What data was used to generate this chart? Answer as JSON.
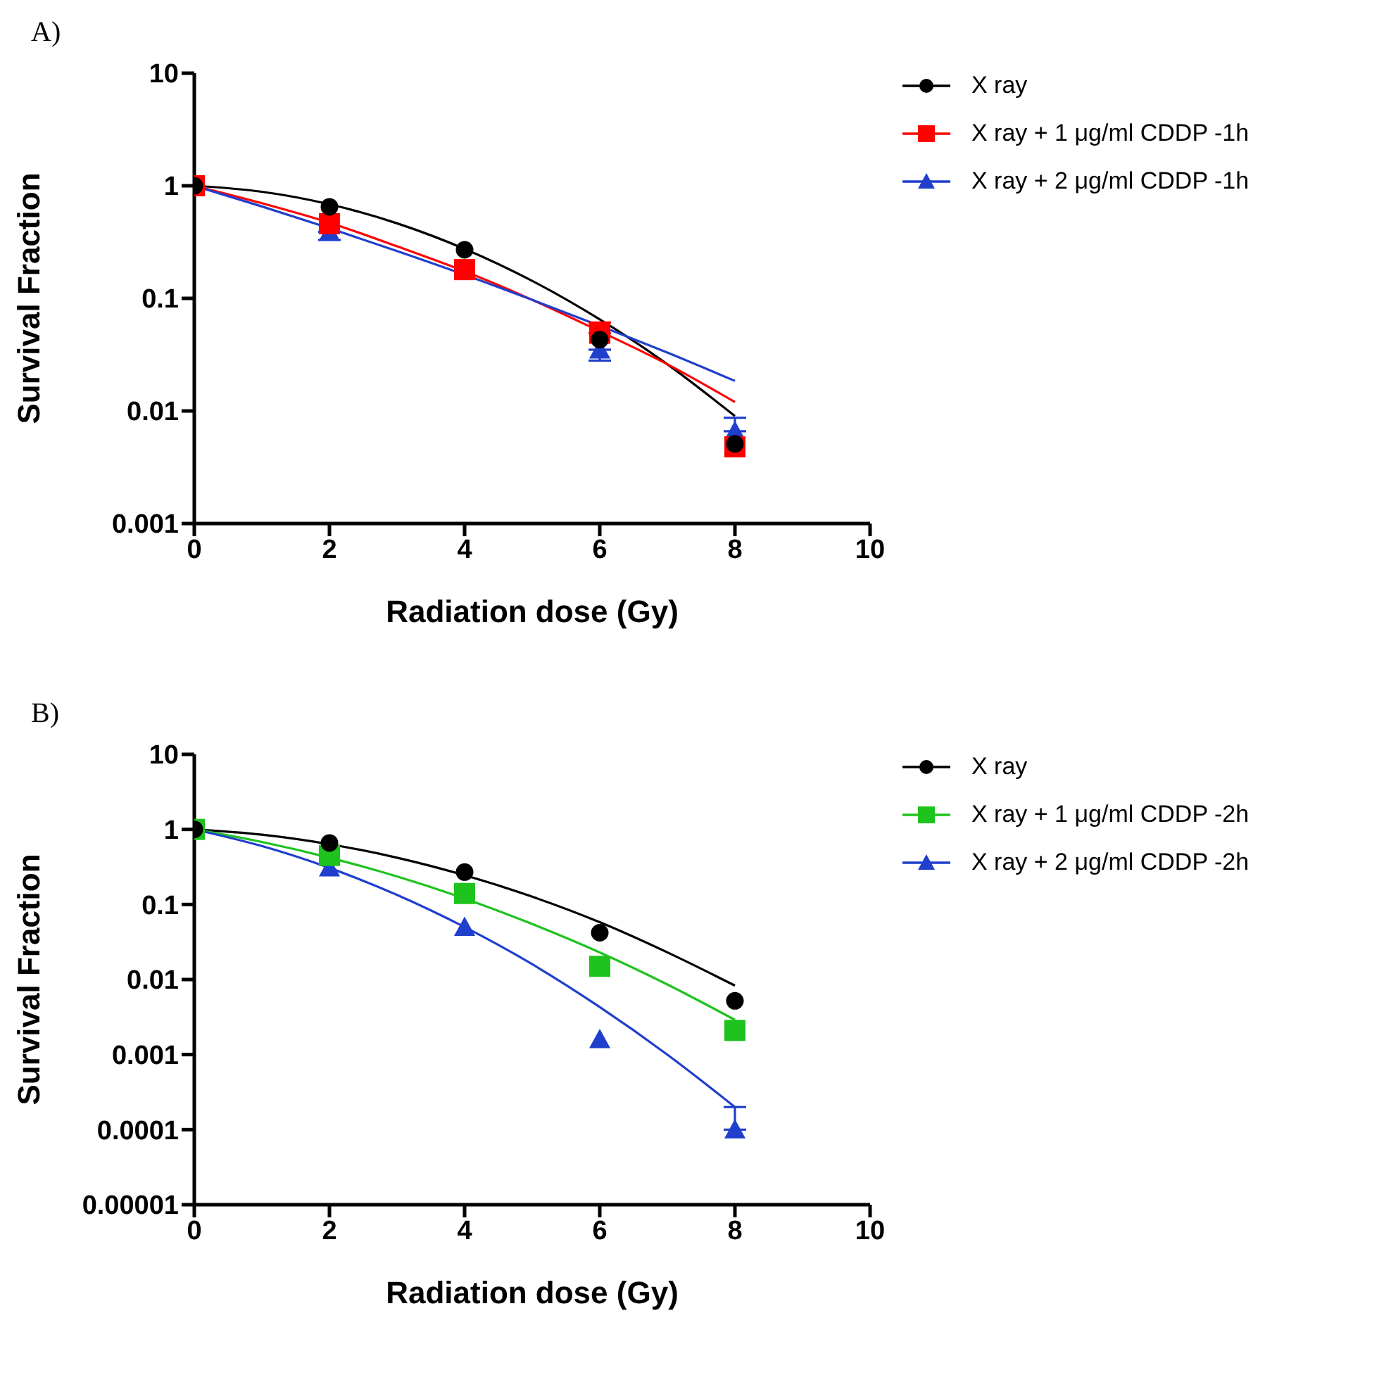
{
  "chart_data": [
    {
      "type": "scatter",
      "title": "A)",
      "xlabel": "Radiation dose (Gy)",
      "ylabel": "Survival Fraction",
      "log": "y",
      "legend": "top right",
      "xlim": [
        0,
        10
      ],
      "xticks": [
        0,
        2,
        4,
        6,
        8,
        10
      ],
      "ylim": [
        0.001,
        10
      ],
      "yticks": [
        0.001,
        0.01,
        0.1,
        1,
        10
      ],
      "series": [
        {
          "name": "X ray",
          "type": "line",
          "color": "#000000",
          "x": [
            0,
            1,
            2,
            3,
            4,
            5,
            6,
            7,
            8
          ],
          "values": [
            1,
            0.885,
            0.685,
            0.464,
            0.275,
            0.143,
            0.065,
            0.026,
            0.009
          ]
        },
        {
          "name": "X ray + 1 μg/ml CDDP -1h",
          "type": "line",
          "color": "#ff0000",
          "x": [
            0,
            1,
            2,
            3,
            4,
            5,
            6,
            7,
            8
          ],
          "values": [
            1,
            0.7,
            0.47,
            0.29,
            0.174,
            0.097,
            0.051,
            0.026,
            0.012
          ]
        },
        {
          "name": "X ray + 2 μg/ml CDDP -1h",
          "type": "line",
          "color": "#1f3fcc",
          "x": [
            0,
            1,
            2,
            3,
            4,
            5,
            6,
            7,
            8
          ],
          "values": [
            1,
            0.655,
            0.42,
            0.263,
            0.162,
            0.097,
            0.057,
            0.033,
            0.0185
          ]
        },
        {
          "marker": "triangle",
          "color": "#1f3fcc",
          "x": [
            2,
            6,
            8
          ],
          "values": [
            0.39,
            0.035,
            0.0066
          ],
          "errors": [
            [
              0.33,
              0.39
            ],
            [
              0.028,
              0.035
            ],
            [
              0.0066,
              0.0087
            ]
          ]
        },
        {
          "marker": "square",
          "color": "#ff0000",
          "x": [
            0,
            2,
            4,
            6,
            8
          ],
          "values": [
            1,
            0.46,
            0.18,
            0.049,
            0.0048
          ],
          "errors": [
            null,
            null,
            null,
            [
              0.049,
              0.061
            ],
            null
          ]
        },
        {
          "marker": "circle",
          "color": "#000000",
          "x": [
            0,
            2,
            4,
            6,
            8
          ],
          "values": [
            1,
            0.65,
            0.27,
            0.043,
            0.0051
          ]
        }
      ]
    },
    {
      "type": "scatter",
      "title": "B)",
      "xlabel": "Radiation dose (Gy)",
      "ylabel": "Survival Fraction",
      "log": "y",
      "legend": "top right",
      "xlim": [
        0,
        10
      ],
      "xticks": [
        0,
        2,
        4,
        6,
        8,
        10
      ],
      "ylim": [
        1e-05,
        10
      ],
      "yticks": [
        {
          "value": 1e-05,
          "label": "0.00001"
        },
        0.0001,
        0.001,
        0.01,
        0.1,
        1,
        10
      ],
      "series": [
        {
          "name": "X ray",
          "type": "line",
          "color": "#000000",
          "x": [
            0,
            1,
            2,
            3,
            4,
            5,
            6,
            7,
            8
          ],
          "values": [
            1,
            0.85,
            0.635,
            0.42,
            0.245,
            0.127,
            0.058,
            0.023,
            0.0083
          ]
        },
        {
          "name": "X ray + 1 μg/ml CDDP -2h",
          "type": "line",
          "color": "#1ec31e",
          "x": [
            0,
            1,
            2,
            3,
            4,
            5,
            6,
            7,
            8
          ],
          "values": [
            1,
            0.68,
            0.42,
            0.236,
            0.12,
            0.055,
            0.023,
            0.0086,
            0.0029
          ]
        },
        {
          "name": "X ray + 2 μg/ml CDDP -2h",
          "type": "line",
          "color": "#1f3fcc",
          "x": [
            0,
            1,
            2,
            3,
            4,
            5,
            6,
            7,
            8
          ],
          "values": [
            1,
            0.6,
            0.307,
            0.134,
            0.05,
            0.016,
            0.0043,
            0.001,
            0.0002
          ]
        },
        {
          "marker": "triangle",
          "color": "#1f3fcc",
          "x": [
            2,
            4,
            6,
            8
          ],
          "values": [
            0.31,
            0.05,
            0.0016,
            0.0001
          ],
          "errors": [
            null,
            null,
            null,
            [
              0.0001,
              0.0002
            ]
          ]
        },
        {
          "marker": "square",
          "color": "#1ec31e",
          "x": [
            0,
            2,
            4,
            6,
            8
          ],
          "values": [
            1,
            0.45,
            0.14,
            0.015,
            0.0021
          ]
        },
        {
          "marker": "circle",
          "color": "#000000",
          "x": [
            0,
            2,
            4,
            6,
            8
          ],
          "values": [
            1,
            0.66,
            0.27,
            0.042,
            0.0052
          ]
        }
      ]
    }
  ]
}
